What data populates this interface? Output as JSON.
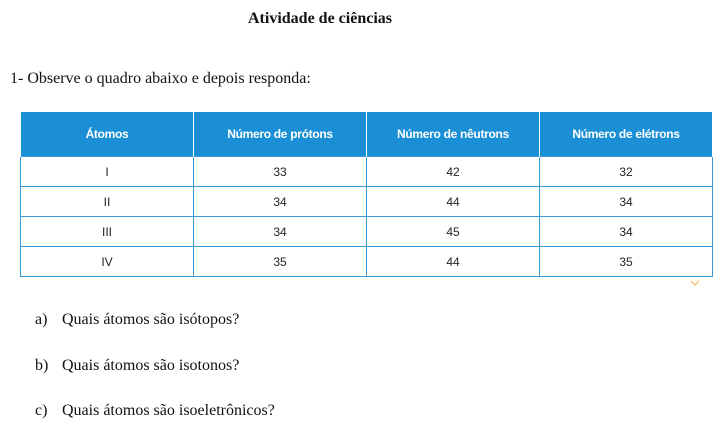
{
  "title": "Atividade de ciências",
  "question": "1- Observe o quadro abaixo e depois responda:",
  "table": {
    "headers": [
      "Átomos",
      "Número de prótons",
      "Número de nêutrons",
      "Número de elétrons"
    ],
    "rows": [
      [
        "I",
        "33",
        "42",
        "32"
      ],
      [
        "II",
        "34",
        "44",
        "34"
      ],
      [
        "III",
        "34",
        "45",
        "34"
      ],
      [
        "IV",
        "35",
        "44",
        "35"
      ]
    ]
  },
  "items": [
    {
      "label": "a)",
      "text": "Quais átomos são isótopos?"
    },
    {
      "label": "b)",
      "text": "Quais átomos são isotonos?"
    },
    {
      "label": "c)",
      "text": "Quais átomos são isoeletrônicos?"
    }
  ]
}
